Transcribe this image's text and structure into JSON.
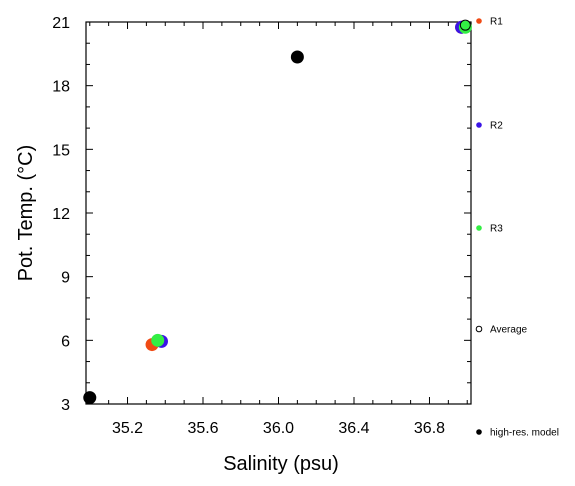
{
  "chart_data": {
    "type": "scatter",
    "xlabel": "Salinity (psu)",
    "ylabel": "Pot. Temp. (°C)",
    "xlim": [
      34.98,
      37.02
    ],
    "ylim": [
      3,
      21
    ],
    "xticks": [
      35.2,
      35.6,
      36.0,
      36.4,
      36.8
    ],
    "xtick_labels": [
      "35.2",
      "35.6",
      "36.0",
      "36.4",
      "36.8"
    ],
    "yticks": [
      3,
      6,
      9,
      12,
      15,
      18,
      21
    ],
    "ytick_labels": [
      "3",
      "6",
      "9",
      "12",
      "15",
      "18",
      "21"
    ],
    "legend_position": "right",
    "series": [
      {
        "name": "R1",
        "color": "#f04a14",
        "marker": "filled-circle",
        "points": [
          {
            "x": 35.33,
            "y": 5.8
          },
          {
            "x": 36.97,
            "y": 20.75
          }
        ]
      },
      {
        "name": "R2",
        "color": "#3b14e6",
        "marker": "filled-circle",
        "points": [
          {
            "x": 35.38,
            "y": 5.95
          },
          {
            "x": 36.97,
            "y": 20.75
          }
        ]
      },
      {
        "name": "R3",
        "color": "#33ee44",
        "marker": "filled-circle",
        "points": [
          {
            "x": 35.36,
            "y": 6.0
          },
          {
            "x": 36.99,
            "y": 20.75
          }
        ]
      },
      {
        "name": "Average",
        "color": "#000000",
        "marker": "open-circle",
        "points": [
          {
            "x": 36.99,
            "y": 20.85
          }
        ]
      },
      {
        "name": "high-res. model",
        "color": "#000000",
        "marker": "filled-circle",
        "points": [
          {
            "x": 35.0,
            "y": 3.3
          },
          {
            "x": 36.1,
            "y": 19.35
          }
        ]
      }
    ]
  }
}
